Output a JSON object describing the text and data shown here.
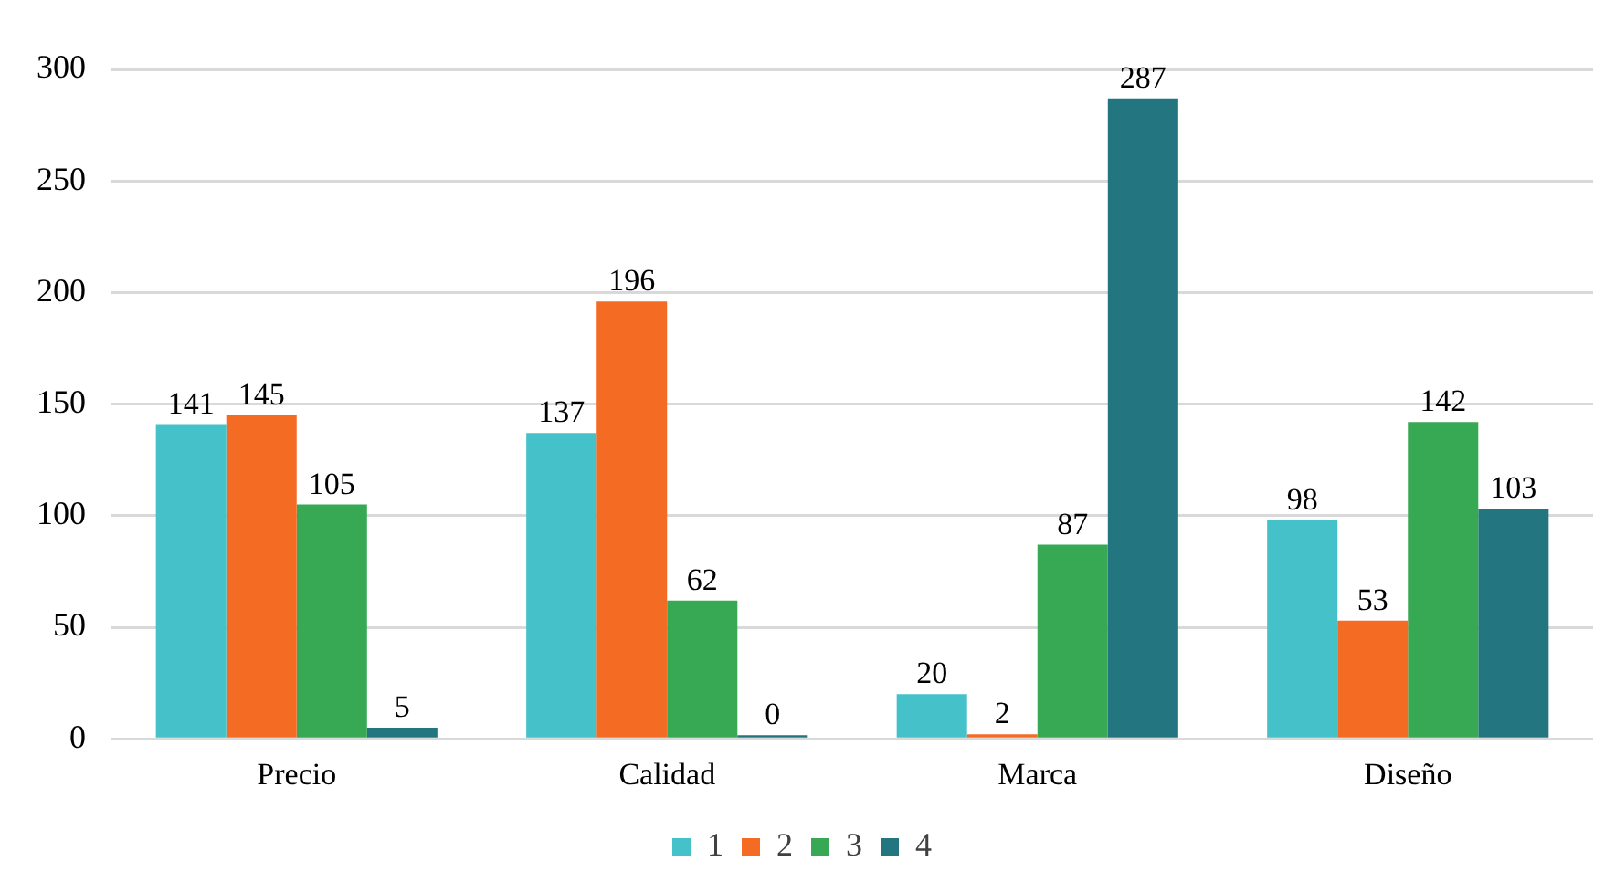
{
  "chart_data": {
    "type": "bar",
    "categories": [
      "Precio",
      "Calidad",
      "Marca",
      "Diseño"
    ],
    "series": [
      {
        "name": "1",
        "color": "#45c1c9",
        "values": [
          141,
          137,
          20,
          98
        ]
      },
      {
        "name": "2",
        "color": "#f46b23",
        "values": [
          145,
          196,
          2,
          53
        ]
      },
      {
        "name": "3",
        "color": "#37a955",
        "values": [
          105,
          62,
          87,
          142
        ]
      },
      {
        "name": "4",
        "color": "#237580",
        "values": [
          5,
          0,
          287,
          103
        ]
      }
    ],
    "ylim": [
      0,
      300
    ],
    "yticks": [
      0,
      50,
      100,
      150,
      200,
      250,
      300
    ],
    "grid": "y",
    "legend": "bottom",
    "data_labels": true
  }
}
